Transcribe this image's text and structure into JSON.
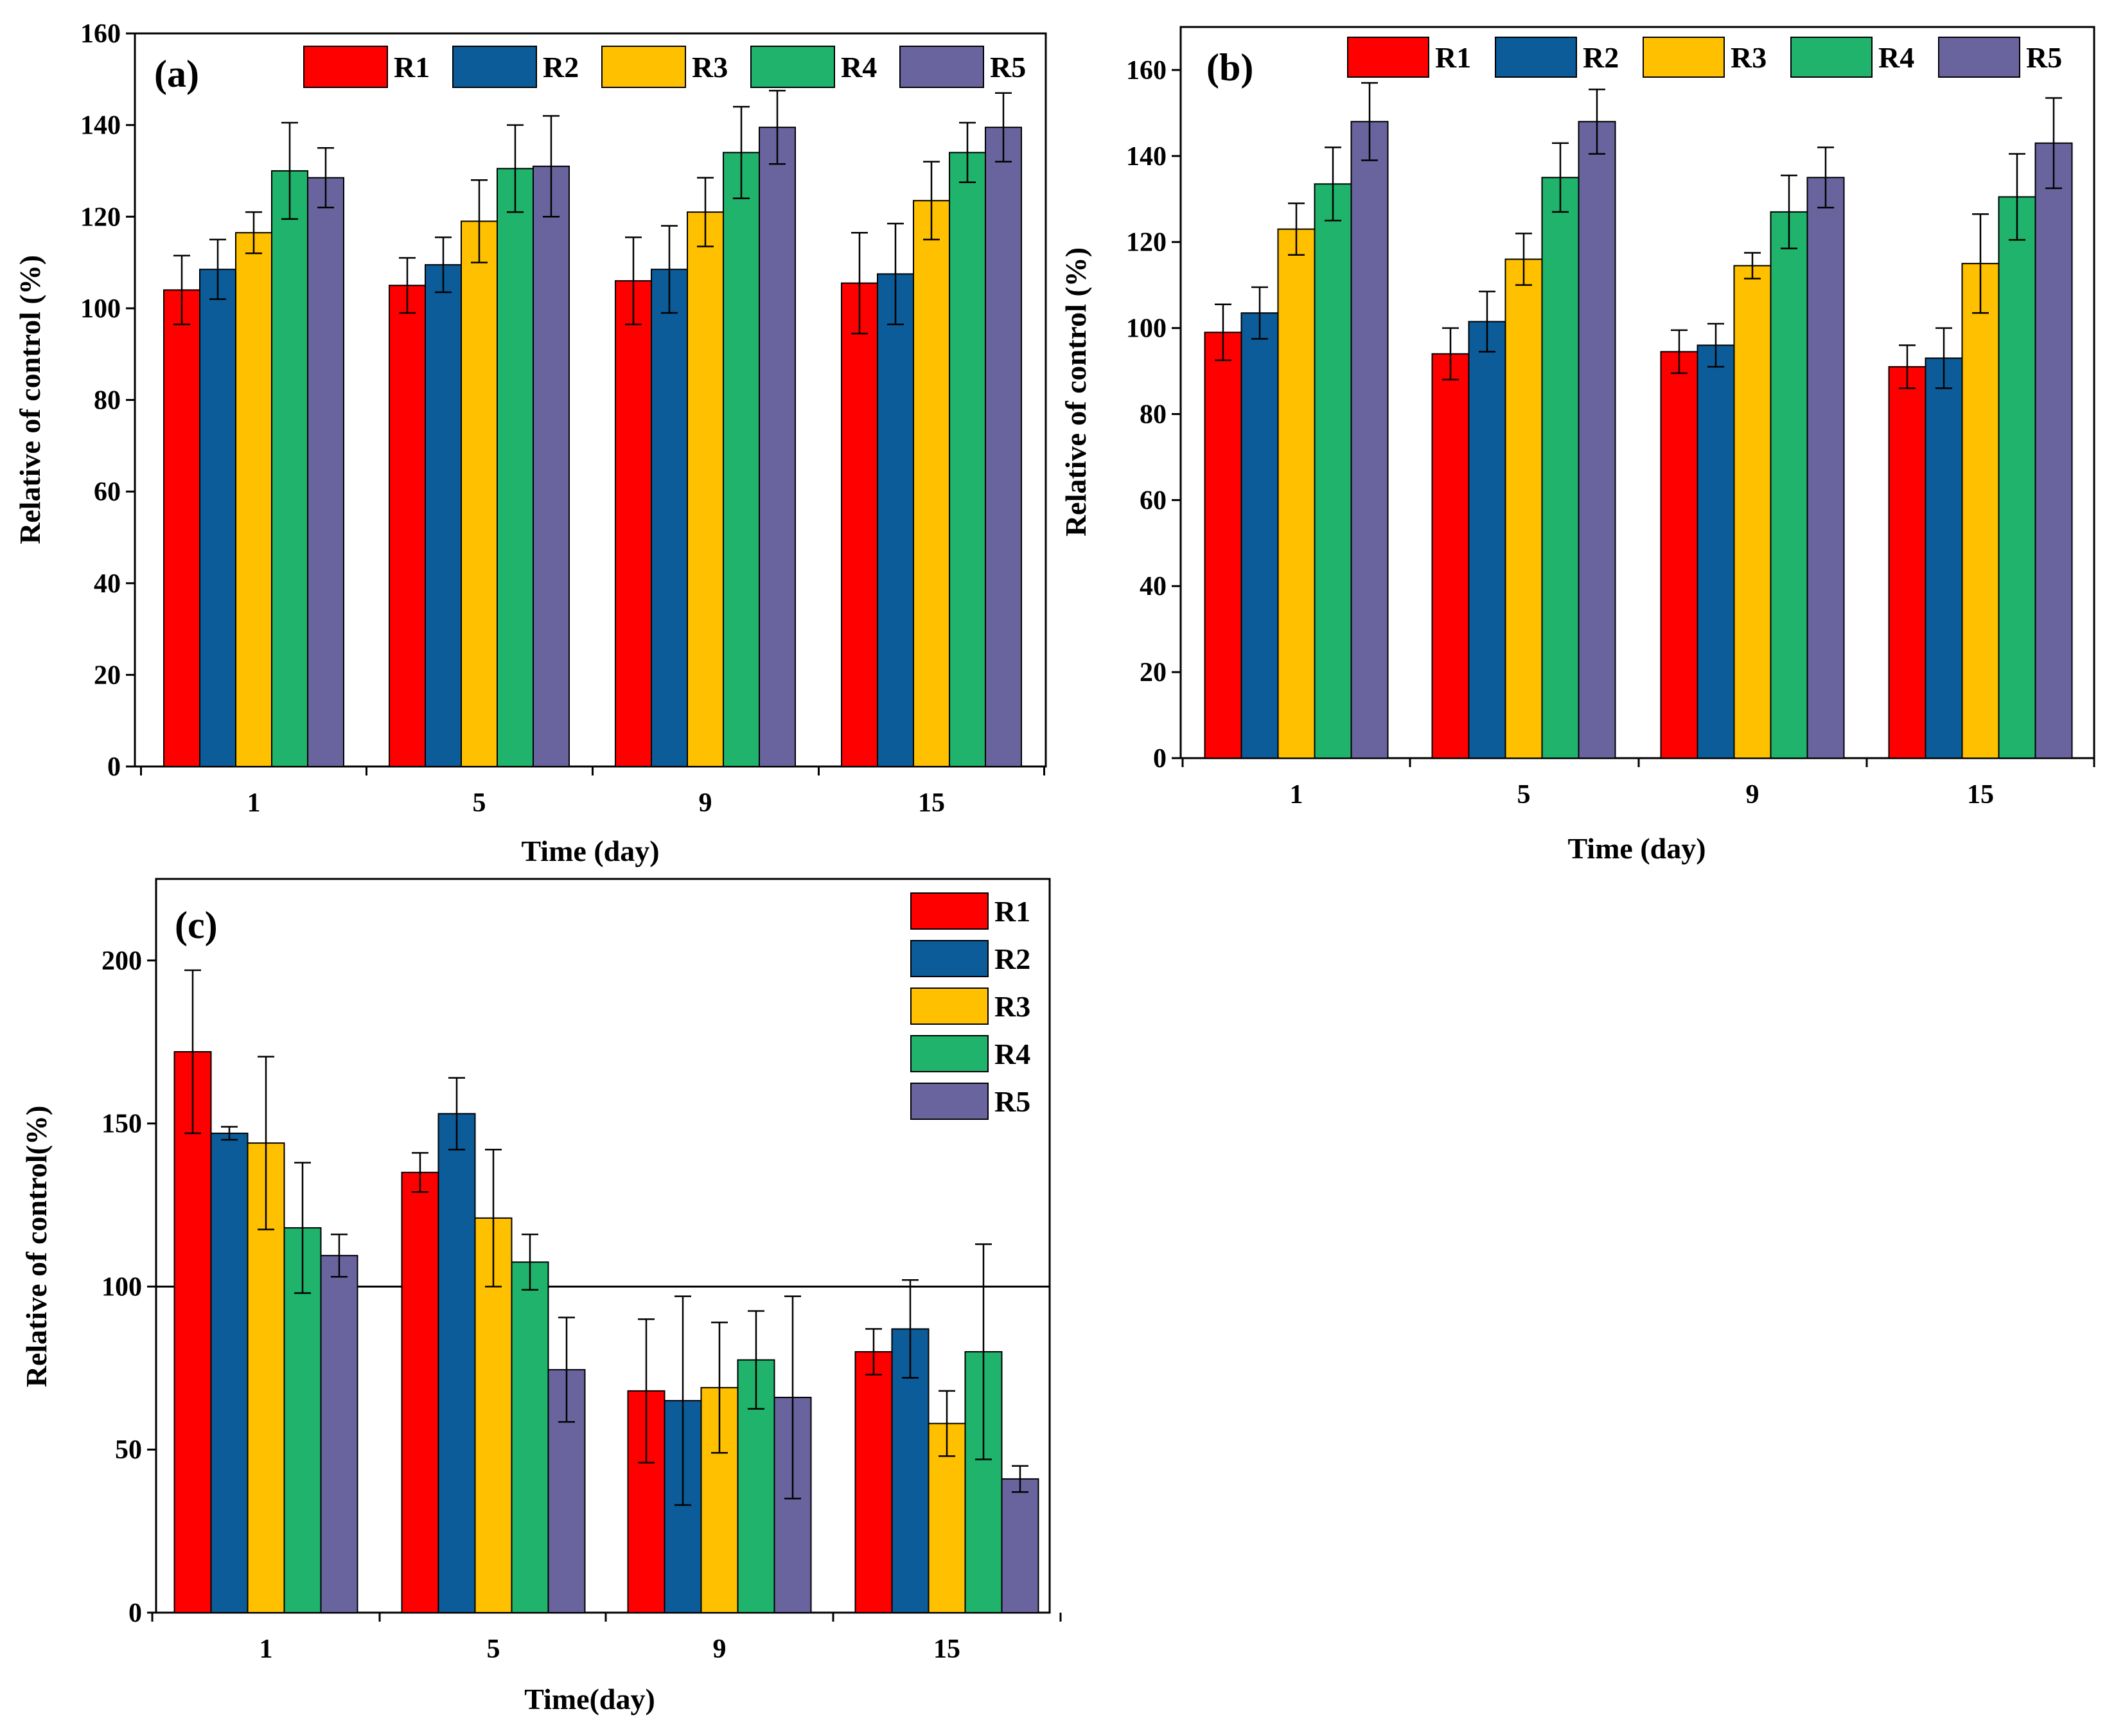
{
  "colors": {
    "R1": "#ff0000",
    "R2": "#0b5c99",
    "R3": "#ffc000",
    "R4": "#1fb36b",
    "R5": "#6a649e",
    "axis": "#000000"
  },
  "chart_data": [
    {
      "type": "bar",
      "panel": "(a)",
      "title": "",
      "xlabel": "Time (day)",
      "ylabel": "Relative of control (%)",
      "categories": [
        "1",
        "5",
        "9",
        "15"
      ],
      "ylim": [
        0,
        160
      ],
      "yticks": [
        "0",
        "20",
        "40",
        "60",
        "80",
        "100",
        "120",
        "140",
        "160"
      ],
      "legend_position": "top",
      "series": [
        {
          "name": "R1",
          "values": [
            104,
            105,
            106,
            105.5
          ],
          "errors": [
            7.5,
            6,
            9.5,
            11
          ]
        },
        {
          "name": "R2",
          "values": [
            108.5,
            109.5,
            108.5,
            107.5
          ],
          "errors": [
            6.5,
            6,
            9.5,
            11
          ]
        },
        {
          "name": "R3",
          "values": [
            116.5,
            119,
            121,
            123.5
          ],
          "errors": [
            4.5,
            9,
            7.5,
            8.5
          ]
        },
        {
          "name": "R4",
          "values": [
            130,
            130.5,
            134,
            134
          ],
          "errors": [
            10.5,
            9.5,
            10,
            6.5
          ]
        },
        {
          "name": "R5",
          "values": [
            128.5,
            131,
            139.5,
            139.5
          ],
          "errors": [
            6.5,
            11,
            8,
            7.5
          ]
        }
      ]
    },
    {
      "type": "bar",
      "panel": "(b)",
      "title": "",
      "xlabel": "Time (day)",
      "ylabel": "Relative of control (%)",
      "categories": [
        "1",
        "5",
        "9",
        "15"
      ],
      "ylim": [
        0,
        170
      ],
      "yticks": [
        "0",
        "20",
        "40",
        "60",
        "80",
        "100",
        "120",
        "140",
        "160"
      ],
      "legend_position": "top",
      "series": [
        {
          "name": "R1",
          "values": [
            99,
            94,
            94.5,
            91
          ],
          "errors": [
            6.5,
            6,
            5,
            5
          ]
        },
        {
          "name": "R2",
          "values": [
            103.5,
            101.5,
            96,
            93
          ],
          "errors": [
            6,
            7,
            5,
            7
          ]
        },
        {
          "name": "R3",
          "values": [
            123,
            116,
            114.5,
            115
          ],
          "errors": [
            6,
            6,
            3,
            11.5
          ]
        },
        {
          "name": "R4",
          "values": [
            133.5,
            135,
            127,
            130.5
          ],
          "errors": [
            8.5,
            8,
            8.5,
            10
          ]
        },
        {
          "name": "R5",
          "values": [
            148,
            148,
            135,
            143
          ],
          "errors": [
            9,
            7.5,
            7,
            10.5
          ]
        }
      ]
    },
    {
      "type": "bar",
      "panel": "(c)",
      "title": "",
      "xlabel": "Time(day)",
      "ylabel": "Relative of control(%)",
      "categories": [
        "1",
        "5",
        "9",
        "15"
      ],
      "ylim": [
        0,
        225
      ],
      "yticks": [
        "0",
        "50",
        "100",
        "150",
        "200"
      ],
      "reference_line": 100,
      "legend_position": "top-right",
      "series": [
        {
          "name": "R1",
          "values": [
            172,
            135,
            68,
            80
          ],
          "errors": [
            25,
            6,
            22,
            7
          ]
        },
        {
          "name": "R2",
          "values": [
            147,
            153,
            65,
            87
          ],
          "errors": [
            2,
            11,
            32,
            15
          ]
        },
        {
          "name": "R3",
          "values": [
            144,
            121,
            69,
            58
          ],
          "errors": [
            26.5,
            21,
            20,
            10
          ]
        },
        {
          "name": "R4",
          "values": [
            118,
            107.5,
            77.5,
            80
          ],
          "errors": [
            20,
            8.5,
            15,
            33
          ]
        },
        {
          "name": "R5",
          "values": [
            109.5,
            74.5,
            66,
            41
          ],
          "errors": [
            6.5,
            16,
            31,
            4
          ]
        }
      ]
    }
  ]
}
